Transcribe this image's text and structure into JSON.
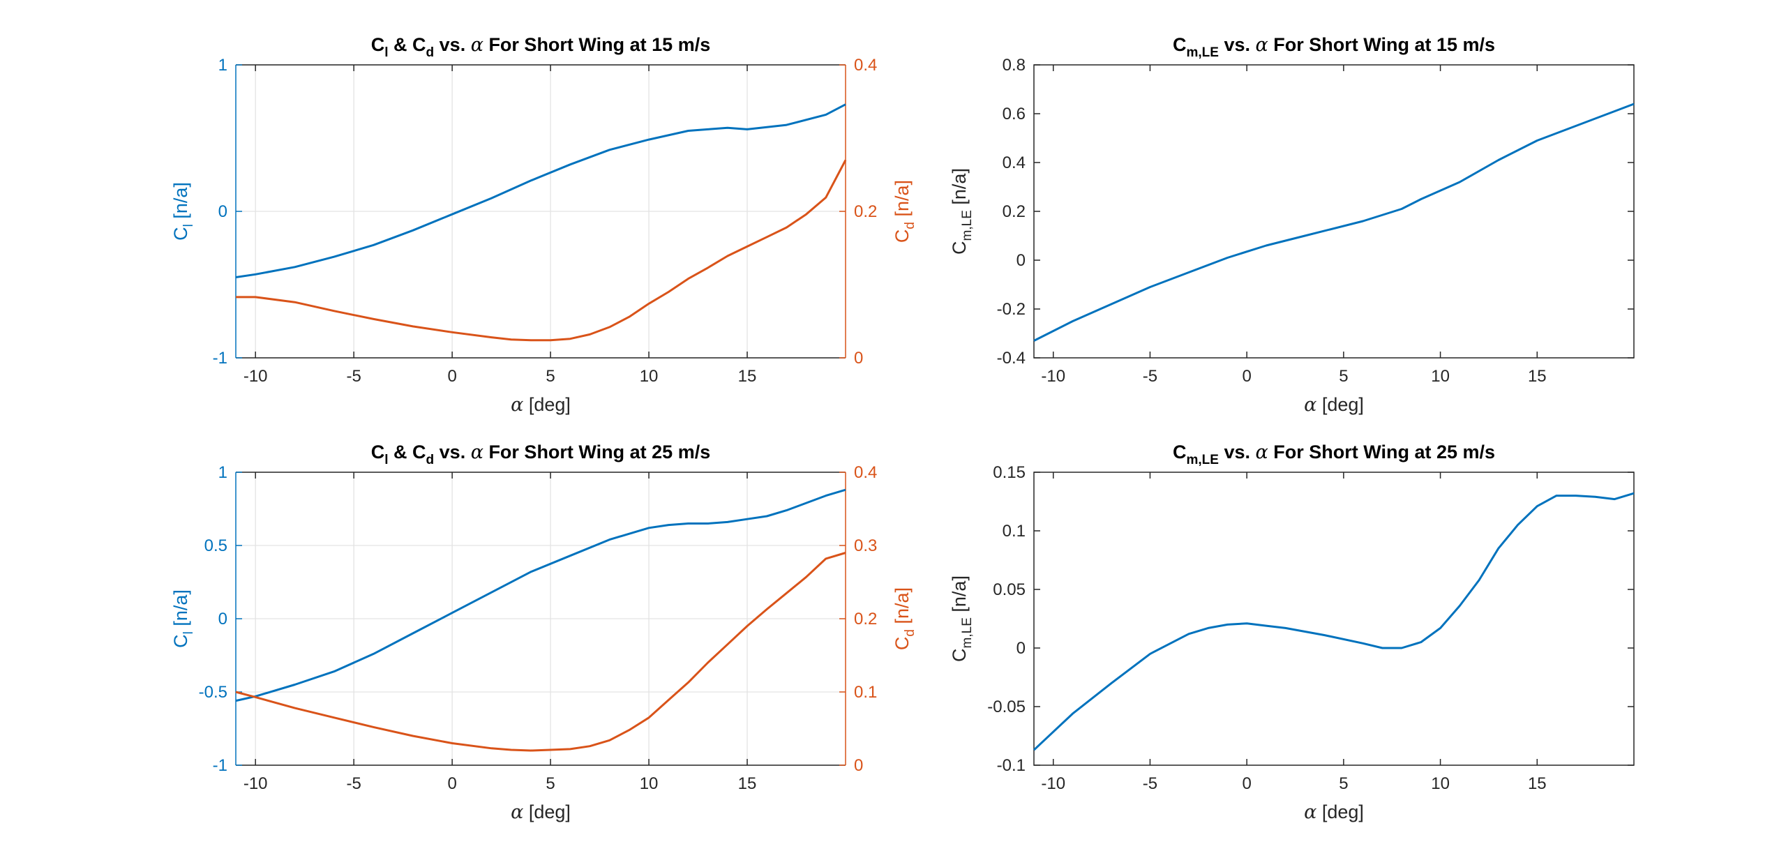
{
  "figure": {
    "title": "",
    "colors": {
      "left_axis": "#0072BD",
      "right_axis": "#D95319",
      "neutral_axis": "#262626",
      "grid": "#E3E3E3"
    }
  },
  "chart_data": [
    {
      "type": "line",
      "title": "C_l & C_d vs. α For Short Wing at 15 m/s",
      "title_parts": {
        "a": "C",
        "a_sub": "l",
        "b": " & C",
        "b_sub": "d",
        "c": " vs. ",
        "alpha": "α",
        "d": " For Short Wing at 15 m/s"
      },
      "xlabel": "α [deg]",
      "xlabel_parts": {
        "alpha": "α",
        "rest": " [deg]"
      },
      "xlim": [
        -11,
        20
      ],
      "xticks": [
        -10,
        -5,
        0,
        5,
        10,
        15
      ],
      "grid": true,
      "left_axis": {
        "label": "C_l [n/a]",
        "label_main": "C",
        "label_sub": "l",
        "label_unit": " [n/a]",
        "ylim": [
          -1,
          1
        ],
        "yticks": [
          -1,
          0,
          1
        ],
        "ytick_labels": [
          "-1",
          "0",
          "1"
        ]
      },
      "right_axis": {
        "label": "C_d [n/a]",
        "label_main": "C",
        "label_sub": "d",
        "label_unit": " [n/a]",
        "ylim": [
          0,
          0.4
        ],
        "yticks": [
          0,
          0.2,
          0.4
        ],
        "ytick_labels": [
          "0",
          "0.2",
          "0.4"
        ]
      },
      "series": [
        {
          "axis": "left",
          "color": "#0072BD",
          "x": [
            -11,
            -10,
            -8,
            -6,
            -4,
            -2,
            0,
            2,
            4,
            6,
            8,
            10,
            12,
            13,
            14,
            15,
            17,
            19,
            20
          ],
          "y": [
            -0.45,
            -0.43,
            -0.38,
            -0.31,
            -0.23,
            -0.13,
            -0.02,
            0.09,
            0.21,
            0.32,
            0.42,
            0.49,
            0.55,
            0.56,
            0.57,
            0.56,
            0.59,
            0.66,
            0.73
          ]
        },
        {
          "axis": "right",
          "color": "#D95319",
          "x": [
            -11,
            -10,
            -8,
            -6,
            -4,
            -2,
            0,
            2,
            3,
            4,
            5,
            6,
            7,
            8,
            9,
            10,
            11,
            12,
            13,
            14,
            15,
            16,
            17,
            18,
            19,
            20
          ],
          "y": [
            0.083,
            0.083,
            0.076,
            0.064,
            0.053,
            0.043,
            0.035,
            0.028,
            0.025,
            0.024,
            0.024,
            0.026,
            0.032,
            0.042,
            0.056,
            0.074,
            0.09,
            0.108,
            0.123,
            0.139,
            0.152,
            0.165,
            0.178,
            0.196,
            0.219,
            0.27
          ]
        }
      ]
    },
    {
      "type": "line",
      "title": "C_m,LE vs. α For Short Wing at 15 m/s",
      "title_parts": {
        "a": "C",
        "a_sub": "m,LE",
        "c": " vs. ",
        "alpha": "α",
        "d": " For Short Wing at 15 m/s"
      },
      "xlabel": "α [deg]",
      "xlabel_parts": {
        "alpha": "α",
        "rest": " [deg]"
      },
      "xlim": [
        -11,
        20
      ],
      "xticks": [
        -10,
        -5,
        0,
        5,
        10,
        15
      ],
      "grid": false,
      "left_axis": {
        "label": "C_m,LE [n/a]",
        "label_main": "C",
        "label_sub": "m,LE",
        "label_unit": " [n/a]",
        "ylim": [
          -0.4,
          0.8
        ],
        "yticks": [
          -0.4,
          -0.2,
          0,
          0.2,
          0.4,
          0.6,
          0.8
        ],
        "ytick_labels": [
          "-0.4",
          "-0.2",
          "0",
          "0.2",
          "0.4",
          "0.6",
          "0.8"
        ]
      },
      "series": [
        {
          "axis": "left",
          "color": "#0072BD",
          "x": [
            -11,
            -9,
            -7,
            -5,
            -3,
            -1,
            1,
            3,
            6,
            8,
            9,
            11,
            13,
            15,
            17,
            19,
            20
          ],
          "y": [
            -0.33,
            -0.25,
            -0.18,
            -0.11,
            -0.05,
            0.01,
            0.06,
            0.1,
            0.16,
            0.21,
            0.25,
            0.32,
            0.41,
            0.49,
            0.55,
            0.61,
            0.64
          ]
        }
      ]
    },
    {
      "type": "line",
      "title": "C_l & C_d vs. α For Short Wing at 25 m/s",
      "title_parts": {
        "a": "C",
        "a_sub": "l",
        "b": " & C",
        "b_sub": "d",
        "c": " vs. ",
        "alpha": "α",
        "d": " For Short Wing at 25 m/s"
      },
      "xlabel": "α [deg]",
      "xlabel_parts": {
        "alpha": "α",
        "rest": " [deg]"
      },
      "xlim": [
        -11,
        20
      ],
      "xticks": [
        -10,
        -5,
        0,
        5,
        10,
        15
      ],
      "grid": true,
      "left_axis": {
        "label": "C_l [n/a]",
        "label_main": "C",
        "label_sub": "l",
        "label_unit": " [n/a]",
        "ylim": [
          -1,
          1
        ],
        "yticks": [
          -1,
          -0.5,
          0,
          0.5,
          1
        ],
        "ytick_labels": [
          "-1",
          "-0.5",
          "0",
          "0.5",
          "1"
        ]
      },
      "right_axis": {
        "label": "C_d [n/a]",
        "label_main": "C",
        "label_sub": "d",
        "label_unit": " [n/a]",
        "ylim": [
          0,
          0.4
        ],
        "yticks": [
          0,
          0.1,
          0.2,
          0.3,
          0.4
        ],
        "ytick_labels": [
          "0",
          "0.1",
          "0.2",
          "0.3",
          "0.4"
        ]
      },
      "series": [
        {
          "axis": "left",
          "color": "#0072BD",
          "x": [
            -11,
            -10,
            -8,
            -6,
            -4,
            -2,
            0,
            2,
            4,
            6,
            8,
            10,
            11,
            12,
            13,
            14,
            15,
            16,
            17,
            18,
            19,
            20
          ],
          "y": [
            -0.56,
            -0.53,
            -0.45,
            -0.36,
            -0.24,
            -0.1,
            0.04,
            0.18,
            0.32,
            0.43,
            0.54,
            0.62,
            0.64,
            0.65,
            0.65,
            0.66,
            0.68,
            0.7,
            0.74,
            0.79,
            0.84,
            0.88
          ]
        },
        {
          "axis": "right",
          "color": "#D95319",
          "x": [
            -11,
            -10,
            -8,
            -6,
            -4,
            -2,
            0,
            2,
            3,
            4,
            5,
            6,
            7,
            8,
            9,
            10,
            11,
            12,
            13,
            14,
            15,
            16,
            17,
            18,
            19,
            20
          ],
          "y": [
            0.1,
            0.093,
            0.078,
            0.065,
            0.052,
            0.04,
            0.03,
            0.023,
            0.021,
            0.02,
            0.021,
            0.022,
            0.026,
            0.034,
            0.048,
            0.065,
            0.089,
            0.113,
            0.14,
            0.165,
            0.19,
            0.213,
            0.235,
            0.257,
            0.282,
            0.29
          ]
        }
      ]
    },
    {
      "type": "line",
      "title": "C_m,LE vs. α For Short Wing at 25 m/s",
      "title_parts": {
        "a": "C",
        "a_sub": "m,LE",
        "c": " vs. ",
        "alpha": "α",
        "d": " For Short Wing at 25 m/s"
      },
      "xlabel": "α [deg]",
      "xlabel_parts": {
        "alpha": "α",
        "rest": " [deg]"
      },
      "xlim": [
        -11,
        20
      ],
      "xticks": [
        -10,
        -5,
        0,
        5,
        10,
        15
      ],
      "grid": false,
      "left_axis": {
        "label": "C_m,LE [n/a]",
        "label_main": "C",
        "label_sub": "m,LE",
        "label_unit": " [n/a]",
        "ylim": [
          -0.1,
          0.15
        ],
        "yticks": [
          -0.1,
          -0.05,
          0,
          0.05,
          0.1,
          0.15
        ],
        "ytick_labels": [
          "-0.1",
          "-0.05",
          "0",
          "0.05",
          "0.1",
          "0.15"
        ]
      },
      "series": [
        {
          "axis": "left",
          "color": "#0072BD",
          "x": [
            -11,
            -9,
            -7,
            -5,
            -3,
            -2,
            -1,
            0,
            1,
            2,
            4,
            6,
            7,
            8,
            9,
            10,
            11,
            12,
            13,
            14,
            15,
            16,
            17,
            18,
            19,
            20
          ],
          "y": [
            -0.087,
            -0.056,
            -0.03,
            -0.005,
            0.012,
            0.017,
            0.02,
            0.021,
            0.019,
            0.017,
            0.011,
            0.004,
            0.0,
            0.0,
            0.005,
            0.017,
            0.036,
            0.058,
            0.085,
            0.105,
            0.121,
            0.13,
            0.13,
            0.129,
            0.127,
            0.132
          ]
        }
      ]
    }
  ]
}
